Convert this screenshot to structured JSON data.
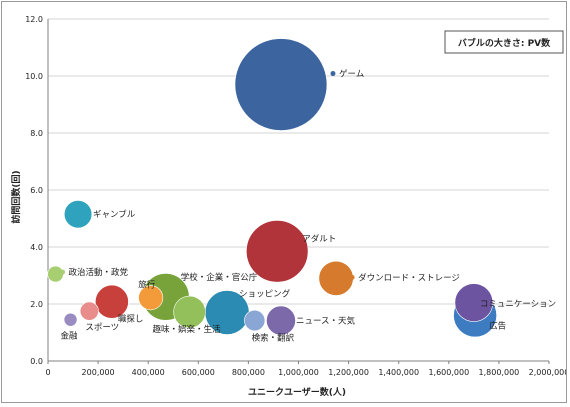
{
  "chart_data": {
    "type": "bubble",
    "xlabel": "ユニークユーザー数(人)",
    "ylabel": "訪問回数(回)",
    "size_note": "バブルの大きさ: PV数",
    "xlim": [
      0,
      2000000
    ],
    "ylim": [
      0,
      12
    ],
    "x_ticks": [
      "0",
      "200,000",
      "400,000",
      "600,000",
      "800,000",
      "1,000,000",
      "1,200,000",
      "1,400,000",
      "1,600,000",
      "1,800,000",
      "2,000,000"
    ],
    "y_ticks": [
      "0.0",
      "2.0",
      "4.0",
      "6.0",
      "8.0",
      "10.0",
      "12.0"
    ],
    "grid": true,
    "legend": "none",
    "points": [
      {
        "name": "ゲーム",
        "x": 930000,
        "y": 9.7,
        "size": 1.0,
        "color": "#3c649e"
      },
      {
        "name": "ギャンブル",
        "x": 120000,
        "y": 5.15,
        "size": 0.09,
        "color": "#2fa3bd"
      },
      {
        "name": "アダルト",
        "x": 915000,
        "y": 3.85,
        "size": 0.45,
        "color": "#b2343b"
      },
      {
        "name": "政治活動・政党",
        "x": 30000,
        "y": 3.05,
        "size": 0.03,
        "color": "#a7cf72"
      },
      {
        "name": "ダウンロード・ストレージ",
        "x": 1150000,
        "y": 2.9,
        "size": 0.14,
        "color": "#d67b2e"
      },
      {
        "name": "コミュニケーション",
        "x": 1700000,
        "y": 2.05,
        "size": 0.17,
        "color": "#6c54a0"
      },
      {
        "name": "旅行",
        "x": 410000,
        "y": 2.22,
        "size": 0.07,
        "color": "#f39b3b"
      },
      {
        "name": "学校・企業・官公庁",
        "x": 470000,
        "y": 2.25,
        "size": 0.26,
        "color": "#78a33a"
      },
      {
        "name": "職探し",
        "x": 255000,
        "y": 2.08,
        "size": 0.13,
        "color": "#c8403c"
      },
      {
        "name": "趣味・娯楽・生活",
        "x": 565000,
        "y": 1.72,
        "size": 0.12,
        "color": "#93c05a"
      },
      {
        "name": "ショッピング",
        "x": 715000,
        "y": 1.7,
        "size": 0.23,
        "color": "#2b8bb2"
      },
      {
        "name": "スポーツ",
        "x": 165000,
        "y": 1.75,
        "size": 0.04,
        "color": "#e88c8c"
      },
      {
        "name": "検索・翻訳",
        "x": 825000,
        "y": 1.42,
        "size": 0.05,
        "color": "#8aa6d4"
      },
      {
        "name": "ニュース・天気",
        "x": 930000,
        "y": 1.42,
        "size": 0.1,
        "color": "#7c69aa"
      },
      {
        "name": "金融",
        "x": 90000,
        "y": 1.45,
        "size": 0.02,
        "color": "#9a8cc0"
      },
      {
        "name": "広告",
        "x": 1705000,
        "y": 1.6,
        "size": 0.22,
        "color": "#3e7cc2"
      }
    ]
  }
}
